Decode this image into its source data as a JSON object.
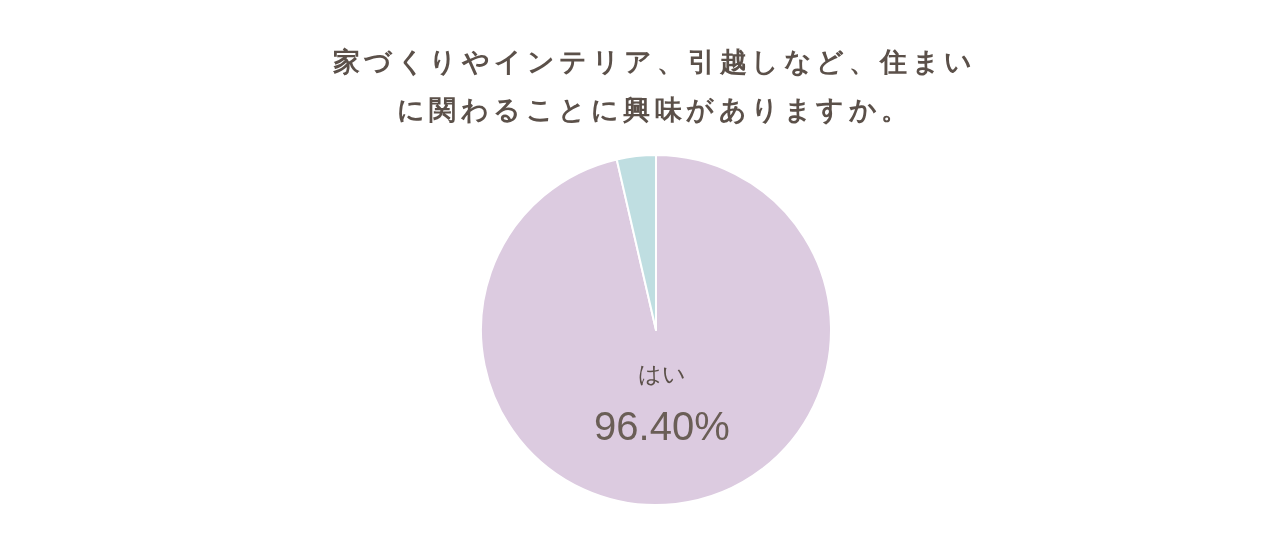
{
  "chart_data": {
    "type": "pie",
    "title": "家づくりやインテリア、引越しなど、住まいに関わることに興味がありますか。",
    "categories": [
      "はい",
      null
    ],
    "values": [
      96.4,
      3.6
    ],
    "colors": [
      "#dccbe0",
      "#bfdee1"
    ],
    "value_labels": [
      "96.40%",
      null
    ]
  }
}
